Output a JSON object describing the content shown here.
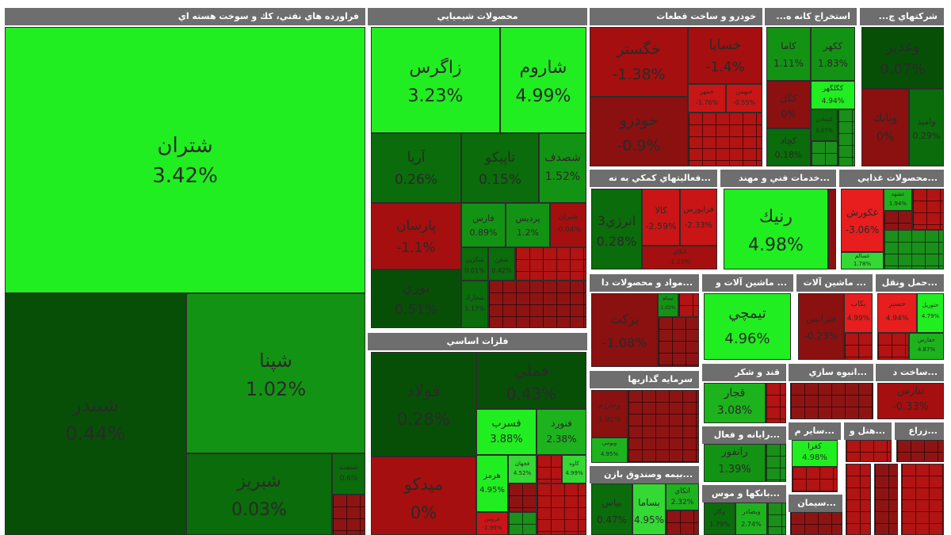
{
  "sectors": {
    "oil": "فراورده هاي نفتي، كك و سوخت هسته اي",
    "chem": "محصولات شيميايي",
    "metals": "فلزات اساسي",
    "auto": "خودرو و ساخت قطعات",
    "mining": "استخراج كانه ه...",
    "multi": "شركتهاي چ...",
    "support": "...فعاليتهاي كمكي به نه",
    "tech": "...خدمات فني و مهند",
    "food": "...محصولات غذايي",
    "pharma": "...مواد و محصولات دا",
    "machinery1": "... ماشين آلات و",
    "machinery2": "... ماشين آلات",
    "transport": "...حمل ونقل",
    "invest": "سرمايه گذاريها",
    "sugar": "قند و شكر",
    "tile": "...انبوه سازي",
    "cons": "...ساخت د",
    "insurance": "...بيمه وصندوق بازن",
    "computer": "...رايانه و فعال",
    "other": "...ساير م",
    "hotel": "...هتل و",
    "agri": "...زراع",
    "banks": "...بانكها و موس",
    "cement": "...سيمان"
  },
  "tiles": {
    "shatran": {
      "name": "شتران",
      "pct": "3.42%"
    },
    "shapna": {
      "name": "شپنا",
      "pct": "1.02%"
    },
    "shabandar": {
      "name": "شبندر",
      "pct": "0.44%"
    },
    "shabriz": {
      "name": "شبريز",
      "pct": "0.03%"
    },
    "shaoil": {
      "name": "شنفت",
      "pct": "0.6%"
    },
    "zagros": {
      "name": "زاگرس",
      "pct": "3.23%"
    },
    "sharoum": {
      "name": "شاروم",
      "pct": "4.99%"
    },
    "aria": {
      "name": "آريا",
      "pct": "0.26%"
    },
    "tapico": {
      "name": "تاپيكو",
      "pct": "0.15%"
    },
    "shesadf": {
      "name": "شصدف",
      "pct": "1.52%"
    },
    "parsan": {
      "name": "پارسان",
      "pct": "-1.1%"
    },
    "farsi": {
      "name": "فارس",
      "pct": "0.89%"
    },
    "pardis": {
      "name": "پرديس",
      "pct": "1.2%"
    },
    "shiran": {
      "name": "شيران",
      "pct": "-0.04%"
    },
    "boori": {
      "name": "بوري",
      "pct": "0.51%"
    },
    "shekhark": {
      "name": "شخارك",
      "pct": "1.17%"
    },
    "shekorb": {
      "name": "شكربن",
      "pct": "0.01%"
    },
    "shefan": {
      "name": "شفن",
      "pct": "0.42%"
    },
    "folad": {
      "name": "فولاد",
      "pct": "0.28%"
    },
    "fameli": {
      "name": "فملي",
      "pct": "0.43%"
    },
    "fesrab": {
      "name": "فسرب",
      "pct": "3.88%"
    },
    "fenoard": {
      "name": "فنورد",
      "pct": "2.38%"
    },
    "hormoz": {
      "name": "هرمز",
      "pct": "4.95%"
    },
    "fajhan": {
      "name": "فجهان",
      "pct": "4.52%"
    },
    "kaveh": {
      "name": "كاوه",
      "pct": "4.99%"
    },
    "midco": {
      "name": "ميدكو",
      "pct": "0%"
    },
    "feroz": {
      "name": "فروس",
      "pct": "-1.99%"
    },
    "khegostar": {
      "name": "خگستر",
      "pct": "-1.38%"
    },
    "khesapa": {
      "name": "خساپا",
      "pct": "-1.4%"
    },
    "khodro": {
      "name": "خودرو",
      "pct": "-0.9%"
    },
    "khemehr": {
      "name": "خمهر",
      "pct": "-1.76%"
    },
    "khebahman": {
      "name": "خبهمن",
      "pct": "-0.55%"
    },
    "kaama": {
      "name": "كاما",
      "pct": "1.11%"
    },
    "kakhzar": {
      "name": "ككهر",
      "pct": "1.83%"
    },
    "kegol": {
      "name": "كگل",
      "pct": "0%"
    },
    "kaghol": {
      "name": "كگلگهر",
      "pct": "4.94%"
    },
    "kechad": {
      "name": "كچاد",
      "pct": "0.18%"
    },
    "kemeadn": {
      "name": "كمعادن",
      "pct": "3.07%"
    },
    "vaghadir": {
      "name": "وغدير",
      "pct": "0.07%"
    },
    "vaemad": {
      "name": "وبانك",
      "pct": "0%"
    },
    "vamid": {
      "name": "واميد",
      "pct": "0.29%"
    },
    "energy3": {
      "name": "انرژي3",
      "pct": "0.28%"
    },
    "kala": {
      "name": "كالا",
      "pct": "-2.59%"
    },
    "faraboors": {
      "name": "فرابورس",
      "pct": "-2.33%"
    },
    "supportx": {
      "name": "اتكاي",
      "pct": "-1.25%"
    },
    "ranik": {
      "name": "رنيك",
      "pct": "4.98%"
    },
    "ghekoorsh": {
      "name": "غكورش",
      "pct": "-3.06%"
    },
    "ghebshahr": {
      "name": "غشهد",
      "pct": "1.94%"
    },
    "ghesalem": {
      "name": "غسالم",
      "pct": "1.78%"
    },
    "barakat": {
      "name": "بركت",
      "pct": "-1.08%"
    },
    "teypi": {
      "name": "تيپيكو",
      "pct": "1.02%"
    },
    "timchi": {
      "name": "تيمچي",
      "pct": "4.96%"
    },
    "bekhab": {
      "name": "بكاب",
      "pct": "4.99%"
    },
    "fetrans": {
      "name": "فترانس",
      "pct": "-0.23%"
    },
    "hesir": {
      "name": "حسير",
      "pct": "4.94%"
    },
    "hetoril": {
      "name": "حتوريل",
      "pct": "4.79%"
    },
    "hefari": {
      "name": "حفارس",
      "pct": "4.87%"
    },
    "vekharazm": {
      "name": "وخارزم",
      "pct": "1.91%"
    },
    "vebomi": {
      "name": "وبومي",
      "pct": "4.95%"
    },
    "ghajar": {
      "name": "قجار",
      "pct": "3.08%"
    },
    "tenars": {
      "name": "ثنارس",
      "pct": "-0.33%"
    },
    "bimas": {
      "name": "بپاس",
      "pct": "0.47%"
    },
    "besama": {
      "name": "بساما",
      "pct": "4.95%"
    },
    "atkai": {
      "name": "اتكاي",
      "pct": "2.32%"
    },
    "ranfor": {
      "name": "رانفور",
      "pct": "1.39%"
    },
    "kegra": {
      "name": "كغرا",
      "pct": "4.98%"
    },
    "kebaks": {
      "name": "وكار",
      "pct": "1.79%"
    },
    "vepost": {
      "name": "وبصادر",
      "pct": "2.74%"
    }
  },
  "colors": {
    "header_bg": "#6e6e6e",
    "green_strong": "#20ee20",
    "green_dark": "#074f07",
    "red_strong": "#e81d1d",
    "red_dark": "#8b1010"
  }
}
